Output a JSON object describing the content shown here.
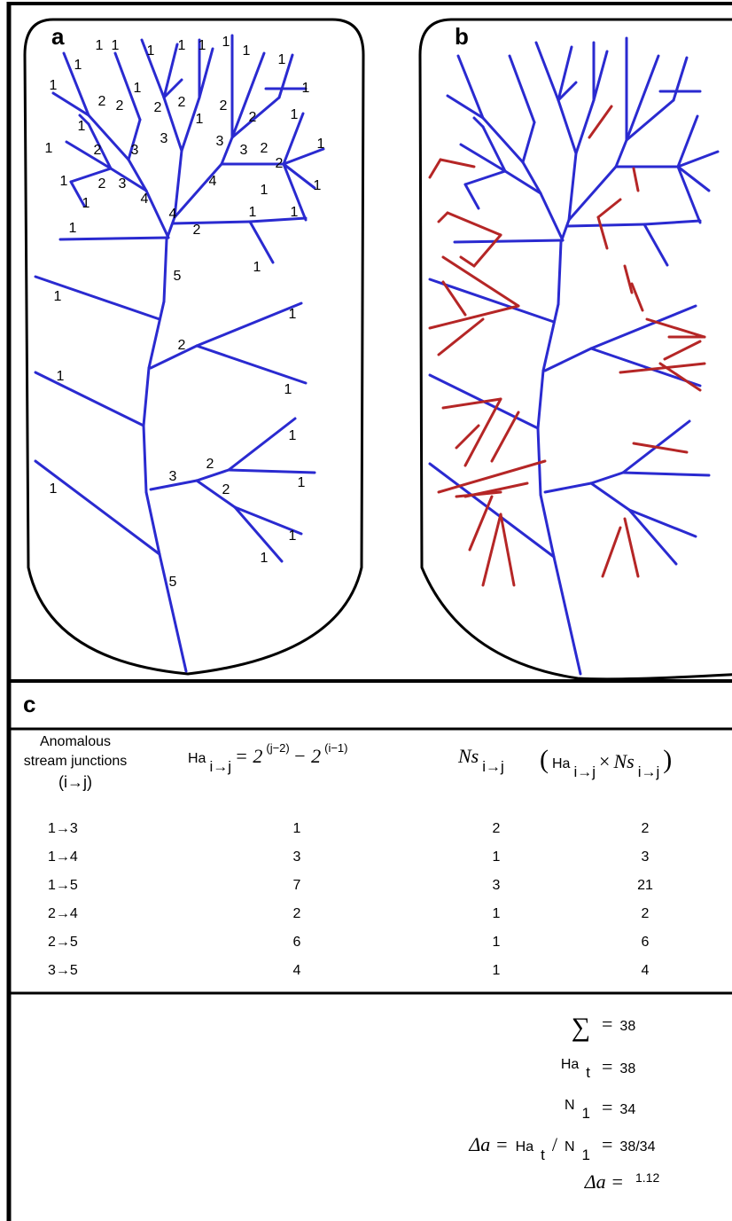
{
  "panels": {
    "a": {
      "label": "a",
      "order_labels": [
        "1",
        "1",
        "1",
        "1",
        "1",
        "1",
        "1",
        "1",
        "1",
        "1",
        "2",
        "2",
        "1",
        "2",
        "2",
        "2",
        "1",
        "1",
        "1",
        "2",
        "1",
        "3",
        "3",
        "2",
        "3",
        "3",
        "2",
        "1",
        "1",
        "2",
        "1",
        "2",
        "3",
        "4",
        "1",
        "1",
        "1",
        "4",
        "1",
        "4",
        "1",
        "2",
        "1",
        "1",
        "5",
        "1",
        "1",
        "2",
        "1",
        "1",
        "1",
        "3",
        "2",
        "2",
        "1",
        "1",
        "1",
        "1",
        "5"
      ]
    },
    "b": {
      "label": "b"
    }
  },
  "table": {
    "label": "c",
    "header": [
      [
        "Anomalous",
        "stream junctions",
        "(i→j)"
      ],
      [
        "Ha",
        "i→j",
        "= 2",
        "(j−2)",
        "− 2",
        "(i−1)"
      ],
      [
        "Ns",
        "i→j"
      ],
      [
        "(",
        "Ha",
        "i→j",
        "×",
        "Ns",
        "i→j",
        ")"
      ]
    ],
    "rows": [
      [
        "1→3",
        "1",
        "2",
        "2"
      ],
      [
        "1→4",
        "3",
        "1",
        "3"
      ],
      [
        "1→5",
        "7",
        "3",
        "21"
      ],
      [
        "2→4",
        "2",
        "1",
        "2"
      ],
      [
        "2→5",
        "6",
        "1",
        "6"
      ],
      [
        "3→5",
        "4",
        "1",
        "4"
      ]
    ]
  },
  "summary": [
    [
      "∑",
      "=",
      "38"
    ],
    [
      "Ha",
      "t",
      "=",
      "38"
    ],
    [
      "N",
      "1",
      "=",
      "34"
    ],
    [
      "Δa =",
      "Ha",
      "t",
      "/",
      "N",
      "1",
      "=",
      "38/34"
    ],
    [
      "Δa =",
      "1.12"
    ]
  ]
}
